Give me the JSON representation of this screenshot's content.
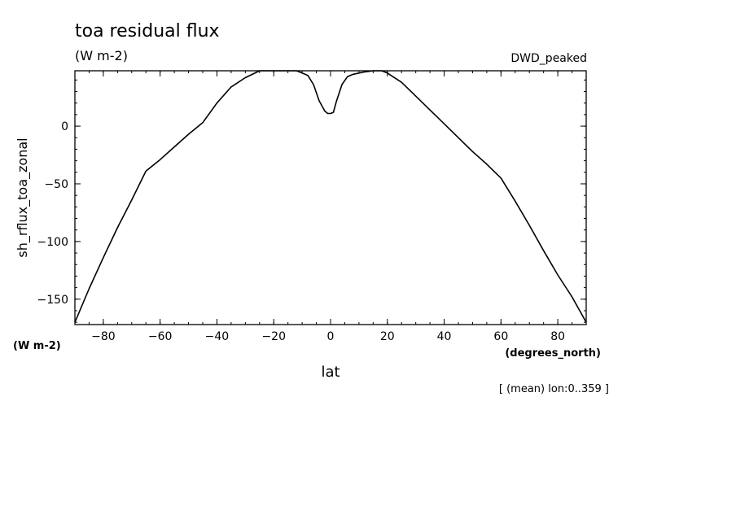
{
  "chart_data": {
    "type": "line",
    "title": "toa residual flux",
    "subtitle": "(W m-2)",
    "dataset_label": "DWD_peaked",
    "xlabel": "lat",
    "xunits": "(degrees_north)",
    "ylabel": "sh_rflux_toa_zonal",
    "yunits": "(W m-2)",
    "footnote": "[ (mean) lon:0..359 ]",
    "xlim": [
      -90,
      90
    ],
    "ylim": [
      -172,
      48
    ],
    "xticks": [
      -80,
      -60,
      -40,
      -20,
      0,
      20,
      40,
      60,
      80
    ],
    "yticks": [
      -150,
      -100,
      -50,
      0
    ],
    "grid": false,
    "series": [
      {
        "x": [
          -90,
          -85,
          -80,
          -75,
          -70,
          -65,
          -60,
          -55,
          -50,
          -45,
          -40,
          -35,
          -30,
          -25,
          -20,
          -18,
          -15,
          -12,
          -10,
          -8,
          -6,
          -4,
          -2,
          -1,
          0,
          1,
          2,
          4,
          6,
          8,
          10,
          12,
          15,
          18,
          20,
          25,
          30,
          35,
          40,
          45,
          50,
          55,
          60,
          65,
          70,
          75,
          80,
          85,
          90
        ],
        "values": [
          -170,
          -141,
          -114,
          -88,
          -64,
          -39,
          -29,
          -18,
          -7,
          3,
          20,
          34,
          42,
          48,
          48,
          48,
          48,
          48,
          46,
          44,
          36,
          22,
          13,
          11,
          11,
          12,
          21,
          36,
          43,
          45,
          46,
          47,
          48,
          48,
          46,
          38,
          26,
          14,
          2,
          -10,
          -22,
          -33,
          -45,
          -65,
          -86,
          -108,
          -129,
          -148,
          -170
        ]
      }
    ]
  }
}
